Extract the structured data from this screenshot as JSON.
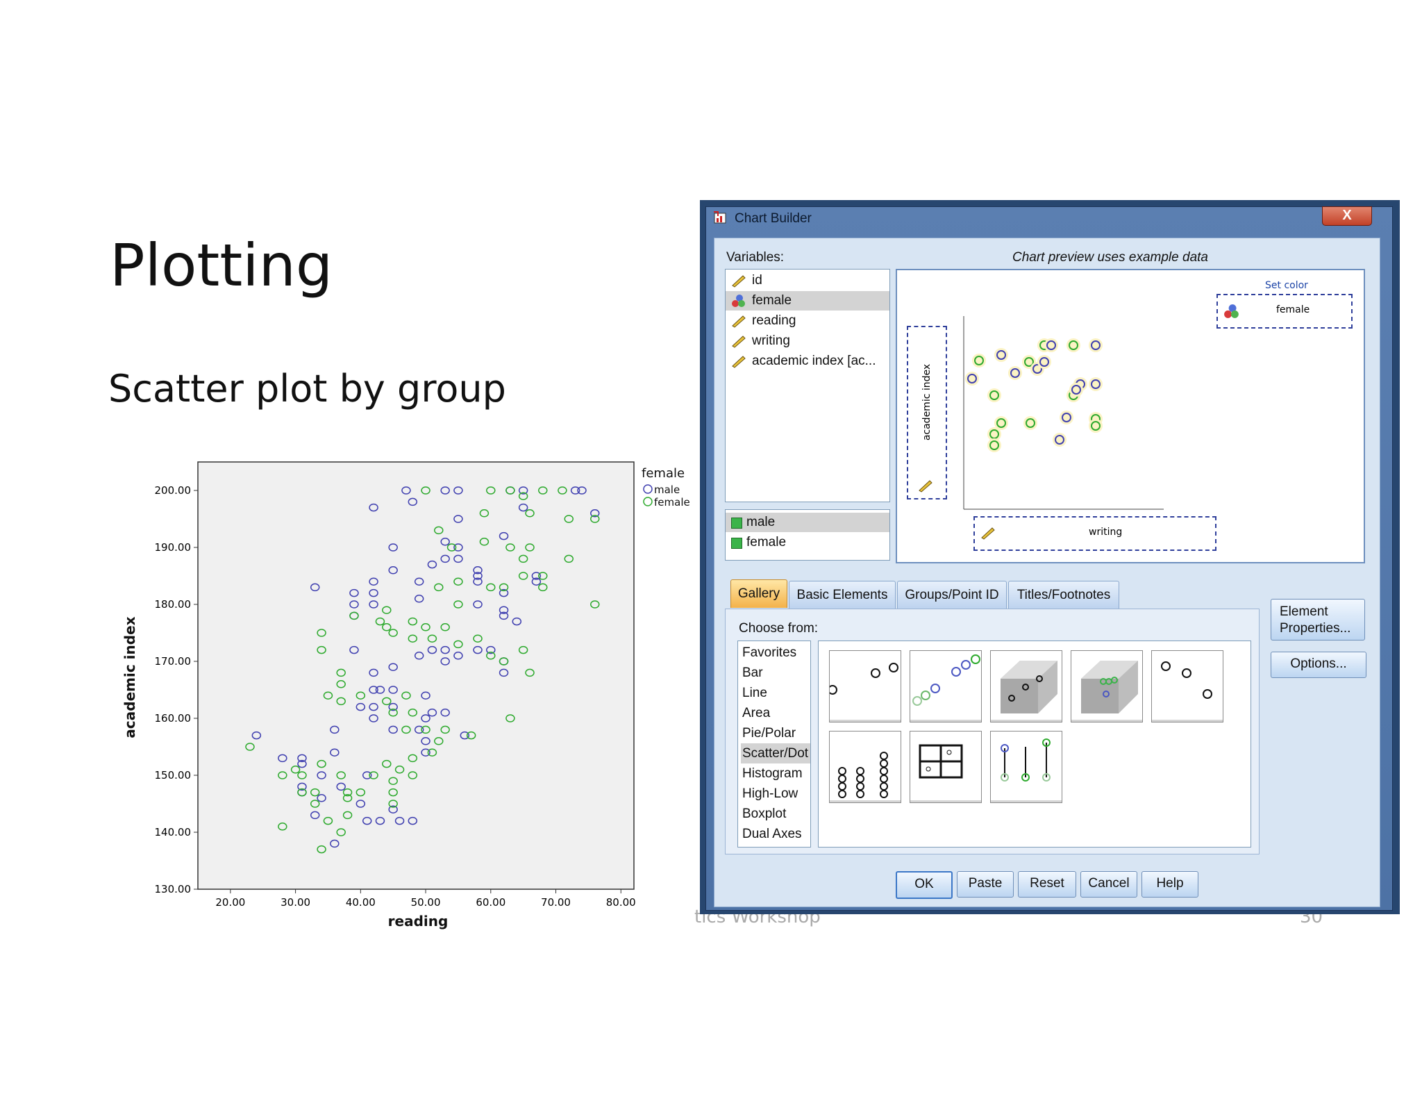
{
  "slide": {
    "title": "Plotting",
    "subtitle": "Scatter plot by group",
    "footer_left": "tics Workshop",
    "footer_right": "30"
  },
  "chart_data": {
    "type": "scatter",
    "xlabel": "reading",
    "ylabel": "academic index",
    "xlim": [
      15,
      82
    ],
    "ylim": [
      130,
      205
    ],
    "xticks": [
      "20.00",
      "30.00",
      "40.00",
      "50.00",
      "60.00",
      "70.00",
      "80.00"
    ],
    "yticks": [
      "130.00",
      "140.00",
      "150.00",
      "160.00",
      "170.00",
      "180.00",
      "190.00",
      "200.00"
    ],
    "legend": {
      "title": "female",
      "placement": "right"
    },
    "series": [
      {
        "name": "male",
        "color": "#4040b0",
        "points": [
          [
            47,
            200
          ],
          [
            53,
            200
          ],
          [
            55,
            200
          ],
          [
            63,
            200
          ],
          [
            65,
            200
          ],
          [
            73,
            200
          ],
          [
            74,
            200
          ],
          [
            42,
            197
          ],
          [
            48,
            198
          ],
          [
            65,
            197
          ],
          [
            76,
            196
          ],
          [
            55,
            195
          ],
          [
            62,
            192
          ],
          [
            33,
            183
          ],
          [
            39,
            182
          ],
          [
            39,
            180
          ],
          [
            39,
            178
          ],
          [
            42,
            184
          ],
          [
            42,
            182
          ],
          [
            42,
            180
          ],
          [
            45,
            190
          ],
          [
            45,
            186
          ],
          [
            49,
            184
          ],
          [
            49,
            181
          ],
          [
            51,
            187
          ],
          [
            53,
            191
          ],
          [
            53,
            188
          ],
          [
            55,
            190
          ],
          [
            55,
            188
          ],
          [
            58,
            180
          ],
          [
            58,
            186
          ],
          [
            58,
            185
          ],
          [
            58,
            184
          ],
          [
            62,
            182
          ],
          [
            62,
            178
          ],
          [
            62,
            179
          ],
          [
            64,
            177
          ],
          [
            67,
            185
          ],
          [
            67,
            184
          ],
          [
            39,
            172
          ],
          [
            42,
            168
          ],
          [
            45,
            169
          ],
          [
            49,
            171
          ],
          [
            51,
            172
          ],
          [
            53,
            172
          ],
          [
            53,
            170
          ],
          [
            55,
            171
          ],
          [
            58,
            172
          ],
          [
            60,
            172
          ],
          [
            62,
            170
          ],
          [
            62,
            168
          ],
          [
            36,
            158
          ],
          [
            40,
            162
          ],
          [
            42,
            165
          ],
          [
            43,
            165
          ],
          [
            42,
            162
          ],
          [
            42,
            160
          ],
          [
            45,
            165
          ],
          [
            45,
            162
          ],
          [
            45,
            158
          ],
          [
            50,
            164
          ],
          [
            50,
            160
          ],
          [
            50,
            156
          ],
          [
            50,
            154
          ],
          [
            49,
            158
          ],
          [
            51,
            161
          ],
          [
            53,
            161
          ],
          [
            56,
            157
          ],
          [
            24,
            157
          ],
          [
            28,
            153
          ],
          [
            31,
            153
          ],
          [
            31,
            152
          ],
          [
            34,
            150
          ],
          [
            34,
            146
          ],
          [
            31,
            148
          ],
          [
            31,
            147
          ],
          [
            33,
            143
          ],
          [
            36,
            154
          ],
          [
            37,
            148
          ],
          [
            40,
            145
          ],
          [
            41,
            150
          ],
          [
            41,
            142
          ],
          [
            45,
            144
          ],
          [
            48,
            142
          ],
          [
            43,
            142
          ],
          [
            36,
            138
          ],
          [
            46,
            142
          ]
        ]
      },
      {
        "name": "female",
        "color": "#2eaa2e",
        "points": [
          [
            50,
            200
          ],
          [
            60,
            200
          ],
          [
            63,
            200
          ],
          [
            65,
            199
          ],
          [
            68,
            200
          ],
          [
            71,
            200
          ],
          [
            59,
            196
          ],
          [
            66,
            196
          ],
          [
            72,
            195
          ],
          [
            76,
            195
          ],
          [
            52,
            193
          ],
          [
            54,
            190
          ],
          [
            59,
            191
          ],
          [
            63,
            190
          ],
          [
            66,
            190
          ],
          [
            65,
            188
          ],
          [
            65,
            185
          ],
          [
            55,
            184
          ],
          [
            52,
            183
          ],
          [
            55,
            180
          ],
          [
            60,
            183
          ],
          [
            62,
            183
          ],
          [
            68,
            185
          ],
          [
            68,
            183
          ],
          [
            72,
            188
          ],
          [
            76,
            180
          ],
          [
            39,
            178
          ],
          [
            43,
            177
          ],
          [
            44,
            179
          ],
          [
            44,
            176
          ],
          [
            45,
            175
          ],
          [
            48,
            177
          ],
          [
            48,
            174
          ],
          [
            50,
            176
          ],
          [
            51,
            174
          ],
          [
            53,
            176
          ],
          [
            55,
            173
          ],
          [
            58,
            174
          ],
          [
            60,
            171
          ],
          [
            62,
            170
          ],
          [
            65,
            172
          ],
          [
            66,
            168
          ],
          [
            34,
            175
          ],
          [
            34,
            172
          ],
          [
            37,
            168
          ],
          [
            37,
            166
          ],
          [
            35,
            164
          ],
          [
            37,
            163
          ],
          [
            40,
            164
          ],
          [
            44,
            163
          ],
          [
            45,
            161
          ],
          [
            47,
            164
          ],
          [
            48,
            161
          ],
          [
            47,
            158
          ],
          [
            50,
            158
          ],
          [
            52,
            156
          ],
          [
            51,
            154
          ],
          [
            53,
            158
          ],
          [
            57,
            157
          ],
          [
            63,
            160
          ],
          [
            23,
            155
          ],
          [
            28,
            150
          ],
          [
            30,
            151
          ],
          [
            31,
            150
          ],
          [
            31,
            147
          ],
          [
            33,
            147
          ],
          [
            33,
            145
          ],
          [
            34,
            152
          ],
          [
            37,
            150
          ],
          [
            38,
            147
          ],
          [
            38,
            146
          ],
          [
            38,
            143
          ],
          [
            40,
            147
          ],
          [
            42,
            150
          ],
          [
            44,
            152
          ],
          [
            45,
            149
          ],
          [
            45,
            147
          ],
          [
            45,
            145
          ],
          [
            46,
            151
          ],
          [
            48,
            153
          ],
          [
            48,
            150
          ],
          [
            34,
            137
          ],
          [
            28,
            141
          ],
          [
            35,
            142
          ],
          [
            37,
            140
          ]
        ]
      }
    ]
  },
  "dialog": {
    "title": "Chart Builder",
    "close_label": "X",
    "variables_label": "Variables:",
    "variables": [
      {
        "name": "id",
        "icon": "scale-ruler-icon"
      },
      {
        "name": "female",
        "icon": "nominal-balls-icon"
      },
      {
        "name": "reading",
        "icon": "scale-ruler-icon"
      },
      {
        "name": "writing",
        "icon": "scale-ruler-icon"
      },
      {
        "name": "academic index [ac...",
        "icon": "scale-ruler-icon"
      }
    ],
    "categories": [
      "male",
      "female"
    ],
    "preview_label": "Chart preview uses example data",
    "preview": {
      "set_color_label": "Set color",
      "color_var": "female",
      "y_drop": "academic index",
      "x_drop": "writing"
    },
    "tabs": [
      "Gallery",
      "Basic Elements",
      "Groups/Point ID",
      "Titles/Footnotes"
    ],
    "choose_from_label": "Choose from:",
    "gallery_items": [
      "Favorites",
      "Bar",
      "Line",
      "Area",
      "Pie/Polar",
      "Scatter/Dot",
      "Histogram",
      "High-Low",
      "Boxplot",
      "Dual Axes"
    ],
    "selected_gallery": "Scatter/Dot",
    "side_buttons": {
      "element_properties": "Element\nProperties...",
      "options": "Options..."
    },
    "buttons": [
      "OK",
      "Paste",
      "Reset",
      "Cancel",
      "Help"
    ],
    "colors": {
      "tab_active": "#f3b24a",
      "title_bar": "#4d72a5",
      "client": "#d8e5f3"
    }
  }
}
